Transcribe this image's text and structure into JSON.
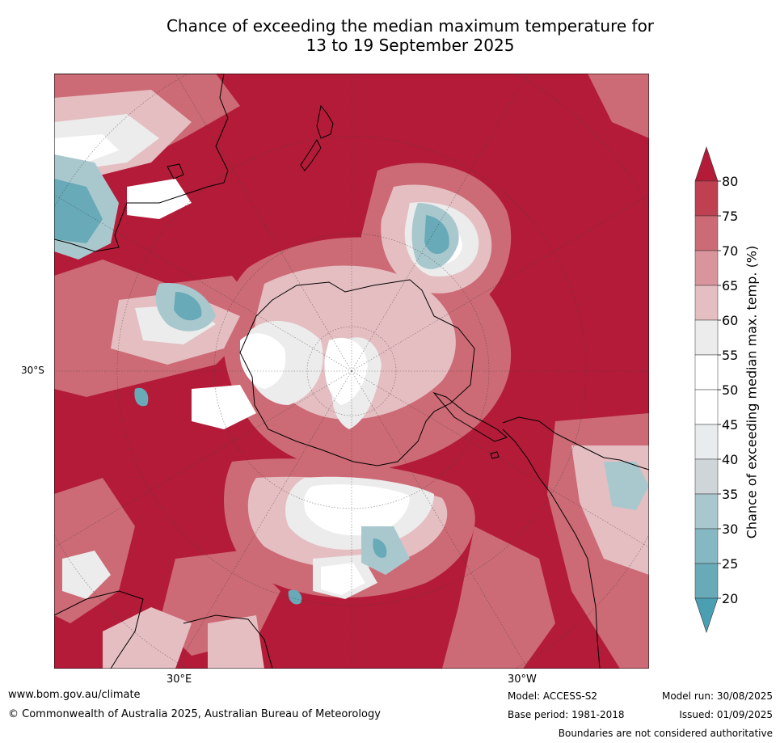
{
  "title": {
    "line1": "Chance of exceeding the median maximum temperature for",
    "line2": "13 to 19 September 2025"
  },
  "map": {
    "latitude_labels": [
      "30°S"
    ],
    "longitude_labels": [
      "30°E",
      "30°W"
    ],
    "dominant_color": "#b31b38"
  },
  "colorbar": {
    "title": "Chance of exceeding median max. temp. (%)",
    "ticks": [
      "80",
      "75",
      "70",
      "65",
      "60",
      "55",
      "50",
      "45",
      "40",
      "35",
      "30",
      "25",
      "20"
    ],
    "colors": [
      "#b31b38",
      "#bf4050",
      "#cc6a75",
      "#d9959c",
      "#e5bec2",
      "#ececec",
      "#ffffff",
      "#ffffff",
      "#e8ecee",
      "#cfd6da",
      "#a9c8ce",
      "#86b8c3",
      "#68aab8"
    ],
    "over_color": "#b31b38",
    "under_color": "#4aa0b2"
  },
  "footer": {
    "url": "www.bom.gov.au/climate",
    "copyright": "© Commonwealth of Australia 2025, Australian Bureau of Meteorology",
    "model": "Model: ACCESS-S2",
    "base_period": "Base period: 1981-2018",
    "model_run": "Model run: 30/08/2025",
    "issued": "Issued: 01/09/2025",
    "boundaries": "Boundaries are not considered authoritative"
  }
}
